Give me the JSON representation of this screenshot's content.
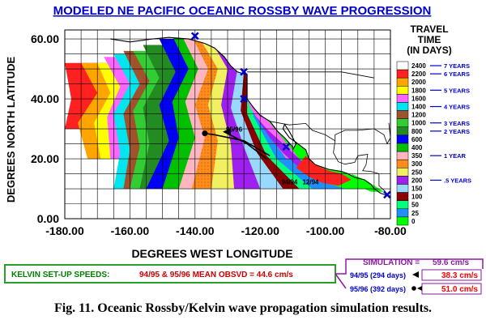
{
  "chart_data": {
    "type": "heatmap",
    "title": "MODELED NE PACIFIC OCEANIC ROSSBY WAVE PROGRESSION",
    "xlabel": "DEGREES  WEST LONGITUDE",
    "ylabel": "DEGREES NORTH LATITUDE",
    "xlim": [
      -180,
      -80
    ],
    "ylim": [
      0,
      63
    ],
    "x_ticks": [
      "-180.00",
      "-160.00",
      "-140.00",
      "-120.00",
      "-100.00",
      "-80.00"
    ],
    "y_ticks": [
      "0.00",
      "20.00",
      "40.00",
      "60.00"
    ],
    "grid": true,
    "legend_title": [
      "TRAVEL",
      "TIME",
      "(IN DAYS)"
    ],
    "legend_placement": "right",
    "legend": [
      {
        "label": "2400",
        "color": "#ffffff"
      },
      {
        "label": "2200",
        "color": "#ff2020"
      },
      {
        "label": "2000",
        "color": "#ffa500"
      },
      {
        "label": "1800",
        "color": "#ffff00"
      },
      {
        "label": "1600",
        "color": "#ff66ff"
      },
      {
        "label": "1400",
        "color": "#00e5ee"
      },
      {
        "label": "1200",
        "color": "#a0522d"
      },
      {
        "label": "1000",
        "color": "#32cd32"
      },
      {
        "label": "800",
        "color": "#228b22"
      },
      {
        "label": "600",
        "color": "#0000ff"
      },
      {
        "label": "400",
        "color": "#00c000"
      },
      {
        "label": "350",
        "color": "#ffb6c1"
      },
      {
        "label": "300",
        "color": "#ff8c1a"
      },
      {
        "label": "250",
        "color": "#f0f060"
      },
      {
        "label": "200",
        "color": "#a020f0"
      },
      {
        "label": "150",
        "color": "#9ad9ff"
      },
      {
        "label": "100",
        "color": "#8b0000"
      },
      {
        "label": "50",
        "color": "#00ff7f"
      },
      {
        "label": "25",
        "color": "#1e90ff"
      },
      {
        "label": "0",
        "color": "#00ff00"
      }
    ],
    "year_marks": [
      {
        "label": "7 YEARS",
        "days": 2400
      },
      {
        "label": "6 YEARS",
        "days": 2200
      },
      {
        "label": "5 YEARS",
        "days": 1800
      },
      {
        "label": "4 YEARS",
        "days": 1400
      },
      {
        "label": "3 YEARS",
        "days": 1000
      },
      {
        "label": "2 YEARS",
        "days": 800
      },
      {
        "label": "1 YEAR",
        "days": 350
      },
      {
        "label": ".5 YEARS",
        "days": 200
      }
    ],
    "bands": [
      {
        "color": "#ffffff",
        "front": [
          [
            -180,
            62
          ],
          [
            -180,
            10
          ]
        ]
      },
      {
        "color": "#ff2020",
        "front": [
          [
            -180,
            52
          ],
          [
            -178,
            40
          ],
          [
            -180,
            30
          ]
        ]
      },
      {
        "color": "#ffa500",
        "front": [
          [
            -175,
            52
          ],
          [
            -170,
            42
          ],
          [
            -176,
            32
          ],
          [
            -173,
            20
          ]
        ]
      },
      {
        "color": "#ffff00",
        "front": [
          [
            -170,
            52
          ],
          [
            -166,
            42
          ],
          [
            -171,
            32
          ],
          [
            -169,
            20
          ]
        ]
      },
      {
        "color": "#ff66ff",
        "front": [
          [
            -168,
            54
          ],
          [
            -163,
            44
          ],
          [
            -167,
            34
          ],
          [
            -166,
            20
          ]
        ]
      },
      {
        "color": "#00e5ee",
        "front": [
          [
            -165,
            55
          ],
          [
            -160,
            45
          ],
          [
            -165,
            35
          ],
          [
            -163,
            22
          ],
          [
            -165,
            10
          ]
        ]
      },
      {
        "color": "#a0522d",
        "front": [
          [
            -162,
            56
          ],
          [
            -157,
            45
          ],
          [
            -162,
            35
          ],
          [
            -160,
            23
          ],
          [
            -162,
            10
          ]
        ]
      },
      {
        "color": "#32cd32",
        "front": [
          [
            -159,
            56
          ],
          [
            -154,
            46
          ],
          [
            -159,
            36
          ],
          [
            -157,
            24
          ],
          [
            -160,
            10
          ]
        ]
      },
      {
        "color": "#228b22",
        "front": [
          [
            -156,
            58
          ],
          [
            -151,
            47
          ],
          [
            -156,
            37
          ],
          [
            -154,
            25
          ],
          [
            -157,
            10
          ]
        ]
      },
      {
        "color": "#0000ff",
        "front": [
          [
            -151,
            60
          ],
          [
            -146,
            49
          ],
          [
            -151,
            38
          ],
          [
            -148,
            26
          ],
          [
            -155,
            10
          ]
        ]
      },
      {
        "color": "#00c000",
        "front": [
          [
            -147,
            61
          ],
          [
            -142,
            50
          ],
          [
            -147,
            39
          ],
          [
            -145,
            27
          ],
          [
            -150,
            10
          ]
        ]
      },
      {
        "color": "#ffb6c1",
        "front": [
          [
            -144,
            61
          ],
          [
            -139,
            50
          ],
          [
            -143,
            39
          ],
          [
            -140,
            27
          ],
          [
            -145,
            10
          ]
        ]
      },
      {
        "color": "#ff8c1a",
        "front": [
          [
            -141,
            61
          ],
          [
            -136,
            50
          ],
          [
            -140,
            38
          ],
          [
            -137,
            27
          ],
          [
            -141,
            10
          ]
        ]
      },
      {
        "color": "#f0f060",
        "front": [
          [
            -139,
            61
          ],
          [
            -133,
            50
          ],
          [
            -136,
            38
          ],
          [
            -133,
            26
          ],
          [
            -135,
            10
          ]
        ]
      },
      {
        "color": "#a020f0",
        "front": [
          [
            -136,
            61
          ],
          [
            -130,
            50
          ],
          [
            -132,
            38
          ],
          [
            -129,
            25
          ],
          [
            -128,
            10
          ]
        ]
      },
      {
        "color": "#9ad9ff",
        "front": [
          [
            -133,
            60
          ],
          [
            -127,
            50
          ],
          [
            -129,
            37
          ],
          [
            -125,
            24
          ],
          [
            -120,
            10
          ]
        ]
      },
      {
        "color": "#8b0000",
        "front": [
          [
            -131,
            59
          ],
          [
            -125,
            49
          ],
          [
            -126,
            36
          ],
          [
            -121,
            22
          ],
          [
            -113,
            10
          ]
        ]
      },
      {
        "color": "#00ff7f",
        "front": [
          [
            -129,
            58
          ],
          [
            -124,
            48
          ],
          [
            -124,
            35
          ],
          [
            -118,
            21
          ],
          [
            -108,
            10
          ]
        ]
      },
      {
        "color": "#1e90ff",
        "front": [
          [
            -127,
            56
          ],
          [
            -124,
            47
          ],
          [
            -122,
            34
          ],
          [
            -115,
            20
          ],
          [
            -104,
            10
          ]
        ]
      },
      {
        "color": "#00ff00",
        "front": [
          [
            -124,
            52
          ],
          [
            -122,
            42
          ],
          [
            -119,
            34
          ],
          [
            -112,
            22
          ],
          [
            -100,
            12
          ],
          [
            -94,
            10
          ]
        ]
      }
    ],
    "coast_bands": [
      {
        "color": "#ff66ff",
        "points": [
          [
            -124,
            40
          ],
          [
            -121,
            36
          ],
          [
            -117,
            32
          ],
          [
            -114,
            28
          ],
          [
            -111,
            24
          ],
          [
            -108,
            20
          ],
          [
            -112,
            20
          ],
          [
            -116,
            26
          ],
          [
            -120,
            32
          ],
          [
            -123,
            37
          ]
        ]
      },
      {
        "color": "#a020f0",
        "points": [
          [
            -122,
            35
          ],
          [
            -118,
            30
          ],
          [
            -114,
            26
          ],
          [
            -110,
            22
          ],
          [
            -106,
            18
          ],
          [
            -101,
            16
          ],
          [
            -104,
            14
          ],
          [
            -109,
            18
          ],
          [
            -113,
            22
          ],
          [
            -117,
            27
          ]
        ]
      },
      {
        "color": "#ff2020",
        "points": [
          [
            -106,
            21
          ],
          [
            -103,
            18
          ],
          [
            -99,
            16
          ],
          [
            -95,
            15
          ],
          [
            -92,
            13
          ],
          [
            -96,
            11
          ],
          [
            -101,
            12
          ],
          [
            -105,
            14
          ],
          [
            -109,
            17
          ]
        ]
      },
      {
        "color": "#00ff00",
        "points": [
          [
            -92,
            15
          ],
          [
            -88,
            13
          ],
          [
            -85,
            11
          ],
          [
            -82,
            9
          ],
          [
            -86,
            9
          ],
          [
            -90,
            11
          ]
        ]
      }
    ],
    "coastline": [
      [
        -166,
        60
      ],
      [
        -160,
        59
      ],
      [
        -153,
        60
      ],
      [
        -148,
        60.5
      ],
      [
        -142,
        60
      ],
      [
        -137,
        58.5
      ],
      [
        -134,
        57
      ],
      [
        -131,
        54
      ],
      [
        -129,
        51
      ],
      [
        -127,
        49
      ],
      [
        -124,
        48
      ],
      [
        -124,
        44
      ],
      [
        -124,
        40
      ],
      [
        -122,
        37
      ],
      [
        -120,
        34.5
      ],
      [
        -117,
        32.5
      ],
      [
        -114.5,
        29
      ],
      [
        -112.5,
        27
      ],
      [
        -110,
        24
      ],
      [
        -110,
        23
      ],
      [
        -109,
        25
      ],
      [
        -111,
        29
      ],
      [
        -112.5,
        31.5
      ],
      [
        -113,
        30
      ],
      [
        -111,
        27
      ],
      [
        -109,
        25.5
      ],
      [
        -106,
        23
      ],
      [
        -105,
        20
      ],
      [
        -103,
        18
      ],
      [
        -99,
        16.5
      ],
      [
        -95,
        15.8
      ],
      [
        -93,
        15
      ],
      [
        -91,
        13.8
      ],
      [
        -88,
        13
      ],
      [
        -86,
        11.5
      ],
      [
        -85,
        10
      ],
      [
        -83,
        8.5
      ],
      [
        -80,
        7.5
      ]
    ],
    "coast_markers": [
      {
        "lon": -140,
        "lat": 61
      },
      {
        "lon": -125,
        "lat": 49
      },
      {
        "lon": -125,
        "lat": 40
      },
      {
        "lon": -112,
        "lat": 24
      },
      {
        "lon": -81,
        "lat": 8
      }
    ],
    "annotations": [
      {
        "text": "94/94",
        "lon": -111,
        "lat": 11.5,
        "color": "#000000"
      },
      {
        "text": "12/94",
        "lon": -104.5,
        "lat": 11.5,
        "color": "#000000"
      },
      {
        "text": "95/96",
        "lon": -128,
        "lat": 29,
        "color": "#000000"
      }
    ],
    "tracks": [
      {
        "name": "94/95",
        "marker": "arrow",
        "points": [
          [
            -118,
            20
          ],
          [
            -124,
            25
          ],
          [
            -131,
            29
          ]
        ]
      },
      {
        "name": "95/96",
        "marker": "dot",
        "points": [
          [
            -117,
            21
          ],
          [
            -125,
            26
          ],
          [
            -134,
            28
          ],
          [
            -137,
            28.5
          ]
        ]
      }
    ],
    "kelvin": {
      "label": "KELVIN SET-UP SPEEDS:",
      "value": "94/95 & 95/96 MEAN OBSVD = 44.6 cm/s"
    },
    "simulation": {
      "label": "SIMULATION =",
      "value": "59.6 cm/s",
      "rows": [
        {
          "label": "94/95 (294 days)",
          "value": "38.3 cm/s",
          "color": "#ff0000"
        },
        {
          "label": "95/96 (392 days)",
          "value": "51.0 cm/s",
          "color": "#ff0000"
        }
      ]
    },
    "caption": "Fig. 11.   Oceanic Rossby/Kelvin wave propagation simulation results."
  }
}
